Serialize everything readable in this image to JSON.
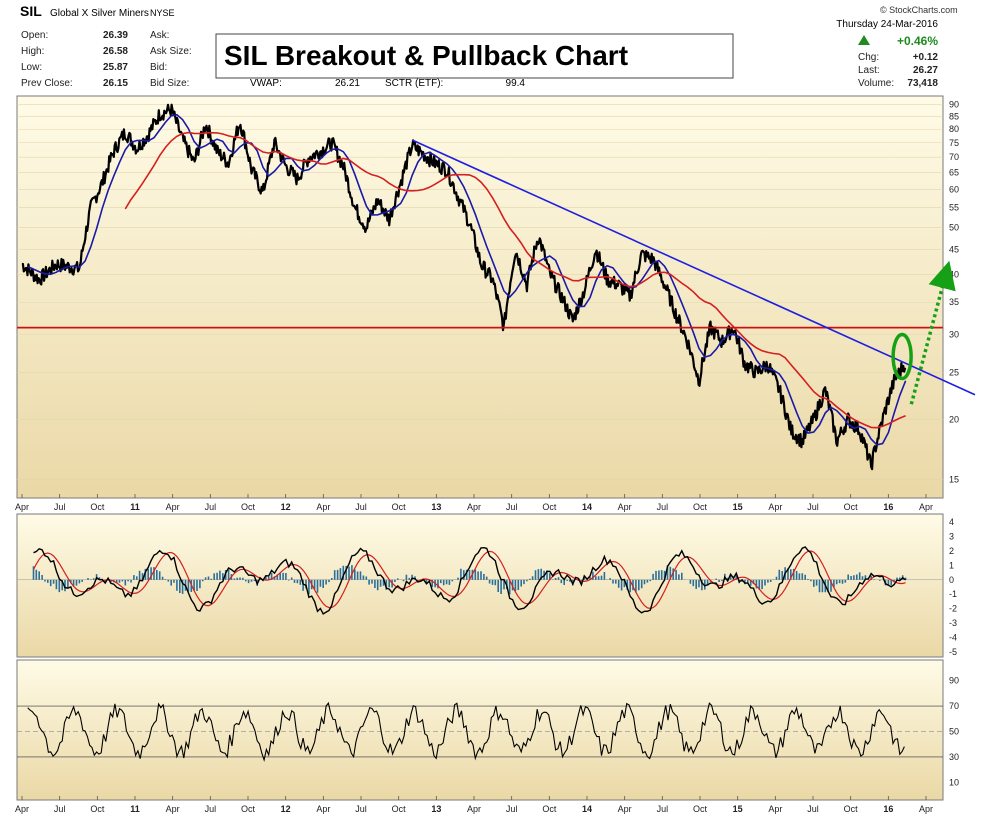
{
  "header": {
    "symbol": "SIL",
    "name": "Global X Silver Miners",
    "exchange": "NYSE",
    "watermark": "© StockCharts.com",
    "date": "Thursday  24-Mar-2016",
    "change_pct": "+0.46%",
    "banner_title": "SIL Breakout & Pullback Chart",
    "left_stats": [
      {
        "label": "Open:",
        "value": "26.39"
      },
      {
        "label": "High:",
        "value": "26.58"
      },
      {
        "label": "Low:",
        "value": "25.87"
      },
      {
        "label": "Prev Close:",
        "value": "26.15"
      }
    ],
    "mid_labels": [
      "Ask:",
      "Ask Size:",
      "Bid:",
      "Bid Size:"
    ],
    "vwap_label": "VWAP:",
    "vwap_value": "26.21",
    "sctr_label": "SCTR (ETF):",
    "sctr_value": "99.4",
    "right_stats": [
      {
        "label": "Chg:",
        "value": "+0.12"
      },
      {
        "label": "Last:",
        "value": "26.27"
      },
      {
        "label": "Volume:",
        "value": "73,418"
      }
    ]
  },
  "colors": {
    "price": "#000000",
    "ma_short": "#1a1aa8",
    "ma_long": "#d42020",
    "trendline": "#1f1fe0",
    "resistance": "#cc1111",
    "breakout_circle": "#16a016",
    "projection": "#16a016",
    "macd_hist": "#2a6f9a",
    "panel_top": "#fffbe6",
    "panel_bottom": "#ead8a6"
  },
  "chart_data": [
    {
      "type": "line",
      "name": "price",
      "y_ticks": [
        "90",
        "85",
        "80",
        "75",
        "70",
        "65",
        "60",
        "55",
        "50",
        "45",
        "40",
        "35",
        "30",
        "25",
        "20",
        "15"
      ],
      "x_ticks": [
        "Apr",
        "Jul",
        "Oct",
        "11",
        "Apr",
        "Jul",
        "Oct",
        "12",
        "Apr",
        "Jul",
        "Oct",
        "13",
        "Apr",
        "Jul",
        "Oct",
        "14",
        "Apr",
        "Jul",
        "Oct",
        "15",
        "Apr",
        "Jul",
        "Oct",
        "16",
        "Apr"
      ],
      "series": [
        {
          "points": [
            [
              0,
              42
            ],
            [
              1.5,
              39
            ],
            [
              3,
              42
            ],
            [
              5,
              41
            ],
            [
              6,
              55
            ],
            [
              7,
              62
            ],
            [
              8,
              72
            ],
            [
              9,
              79
            ],
            [
              10,
              73
            ],
            [
              11,
              78
            ],
            [
              12,
              86
            ],
            [
              13,
              88
            ],
            [
              14,
              76
            ],
            [
              15,
              68
            ],
            [
              16,
              82
            ],
            [
              17,
              72
            ],
            [
              18,
              68
            ],
            [
              19,
              83
            ],
            [
              20,
              66
            ],
            [
              21,
              59
            ],
            [
              22,
              75
            ],
            [
              23,
              67
            ],
            [
              24,
              63
            ],
            [
              25,
              70
            ],
            [
              26,
              72
            ],
            [
              27,
              75
            ],
            [
              28,
              67
            ],
            [
              29,
              55
            ],
            [
              30,
              50
            ],
            [
              31,
              57
            ],
            [
              32,
              52
            ],
            [
              33,
              62
            ],
            [
              34,
              74
            ],
            [
              35,
              71
            ],
            [
              36,
              68
            ],
            [
              37,
              66
            ],
            [
              38,
              58
            ],
            [
              39,
              51
            ],
            [
              40,
              42
            ],
            [
              41,
              39
            ],
            [
              42,
              31
            ],
            [
              43,
              45
            ],
            [
              44,
              38
            ],
            [
              45,
              48
            ],
            [
              46,
              40
            ],
            [
              47,
              36
            ],
            [
              48,
              32
            ],
            [
              49,
              37
            ],
            [
              50,
              45
            ],
            [
              51,
              39
            ],
            [
              52,
              38
            ],
            [
              53,
              36
            ],
            [
              54,
              44
            ],
            [
              55,
              43
            ],
            [
              56,
              38
            ],
            [
              57,
              33
            ],
            [
              58,
              29
            ],
            [
              59,
              24
            ],
            [
              60,
              31
            ],
            [
              61,
              29
            ],
            [
              62,
              31
            ],
            [
              63,
              26
            ],
            [
              64,
              25
            ],
            [
              65,
              26
            ],
            [
              66,
              23
            ],
            [
              67,
              19
            ],
            [
              68,
              18
            ],
            [
              69,
              20
            ],
            [
              70,
              23
            ],
            [
              71,
              18
            ],
            [
              72,
              20
            ],
            [
              73,
              19
            ],
            [
              74,
              16
            ],
            [
              75,
              20
            ],
            [
              76,
              24
            ],
            [
              77,
              26.3
            ]
          ]
        }
      ],
      "annotations": [
        "downtrend line from 2012 high",
        "horizontal resistance ~31",
        "breakout circle Mar-2016",
        "green projection arrow toward ~40"
      ]
    },
    {
      "type": "line",
      "name": "macd",
      "y_ticks": [
        "4",
        "3",
        "2",
        "1",
        "0",
        "-1",
        "-2",
        "-3",
        "-4",
        "-5"
      ]
    },
    {
      "type": "line",
      "name": "rsi",
      "y_ticks": [
        "90",
        "70",
        "50",
        "30",
        "10"
      ]
    }
  ]
}
